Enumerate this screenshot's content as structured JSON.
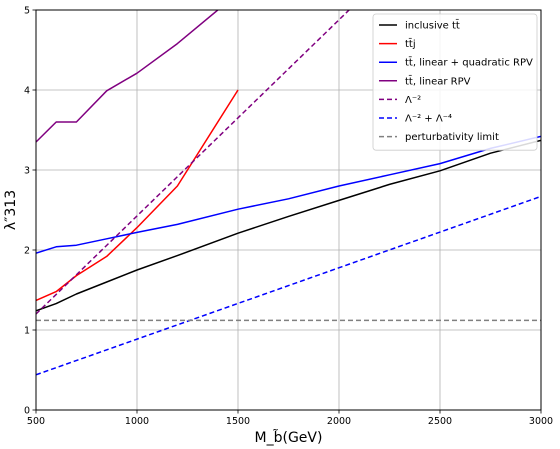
{
  "chart_data": {
    "type": "line",
    "xlabel": "M_b̃(GeV)",
    "ylabel": "λ″313",
    "xlim": [
      500,
      3000
    ],
    "ylim": [
      0,
      5
    ],
    "x_ticks": [
      "500",
      "1000",
      "1500",
      "2000",
      "2500",
      "3000"
    ],
    "y_ticks": [
      "0",
      "1",
      "2",
      "3",
      "4",
      "5"
    ],
    "grid": true,
    "legend_position": "top-right",
    "series": [
      {
        "name": "inclusive tt̄",
        "color": "#000000",
        "dash": "solid",
        "x": [
          500,
          600,
          700,
          850,
          1000,
          1200,
          1500,
          1750,
          2000,
          2250,
          2500,
          2750,
          3000
        ],
        "y": [
          1.24,
          1.33,
          1.45,
          1.6,
          1.75,
          1.93,
          2.21,
          2.42,
          2.62,
          2.82,
          2.99,
          3.21,
          3.37
        ]
      },
      {
        "name": "tt̄j",
        "color": "#ff0000",
        "dash": "solid",
        "x": [
          500,
          600,
          700,
          850,
          1000,
          1200,
          1500
        ],
        "y": [
          1.37,
          1.48,
          1.68,
          1.92,
          2.28,
          2.8,
          4.0
        ]
      },
      {
        "name": "tt̄, linear + quadratic RPV",
        "color": "#0000ff",
        "dash": "solid",
        "x": [
          500,
          600,
          700,
          850,
          1000,
          1200,
          1500,
          1750,
          2000,
          2250,
          2500,
          2750,
          3000
        ],
        "y": [
          1.96,
          2.04,
          2.06,
          2.14,
          2.22,
          2.32,
          2.51,
          2.64,
          2.8,
          2.94,
          3.08,
          3.27,
          3.42
        ]
      },
      {
        "name": "tt̄, linear RPV",
        "color": "#800080",
        "dash": "solid",
        "x": [
          500,
          600,
          700,
          850,
          1000,
          1200,
          1400
        ],
        "y": [
          3.35,
          3.6,
          3.6,
          3.99,
          4.21,
          4.58,
          5.0
        ]
      },
      {
        "name": "Λ⁻²",
        "color": "#800080",
        "dash": "dashed",
        "x": [
          500,
          2050
        ],
        "y": [
          1.2,
          5.0
        ]
      },
      {
        "name": "Λ⁻² + Λ⁻⁴",
        "color": "#0000ff",
        "dash": "dashed",
        "x": [
          500,
          3000
        ],
        "y": [
          0.44,
          2.67
        ]
      },
      {
        "name": "perturbativity limit",
        "color": "#808080",
        "dash": "dashed",
        "x": [
          500,
          3000
        ],
        "y": [
          1.12,
          1.12
        ]
      }
    ]
  }
}
